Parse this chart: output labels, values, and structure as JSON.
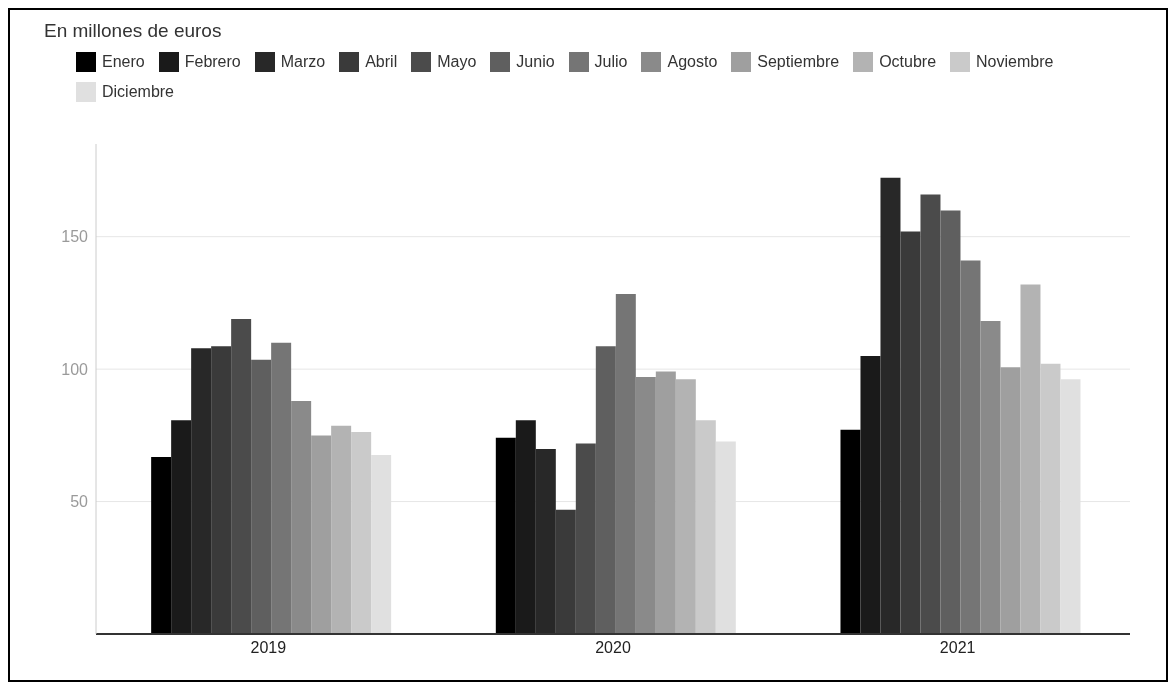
{
  "chart_data": {
    "type": "bar",
    "title": "En millones de euros",
    "categories": [
      "2019",
      "2020",
      "2021"
    ],
    "series": [
      {
        "name": "Enero",
        "color": "#000000",
        "values": [
          66.8,
          74.1,
          77.1
        ]
      },
      {
        "name": "Febrero",
        "color": "#1a1a1a",
        "values": [
          80.7,
          80.7,
          105
        ]
      },
      {
        "name": "Marzo",
        "color": "#282828",
        "values": [
          107.9,
          69.8,
          172.3
        ]
      },
      {
        "name": "Abril",
        "color": "#3a3a3a",
        "values": [
          108.6,
          46.9,
          152
        ]
      },
      {
        "name": "Mayo",
        "color": "#4b4b4b",
        "values": [
          118.9,
          71.9,
          165.9
        ]
      },
      {
        "name": "Junio",
        "color": "#5f5f5f",
        "values": [
          103.5,
          108.6,
          159.9
        ]
      },
      {
        "name": "Julio",
        "color": "#757575",
        "values": [
          110,
          128.4,
          141
        ]
      },
      {
        "name": "Agosto",
        "color": "#8a8a8a",
        "values": [
          88,
          97,
          118.2
        ]
      },
      {
        "name": "Septiembre",
        "color": "#9f9f9f",
        "values": [
          74.9,
          99.1,
          100.7
        ]
      },
      {
        "name": "Octubre",
        "color": "#b3b3b3",
        "values": [
          78.6,
          96.2,
          132
        ]
      },
      {
        "name": "Noviembre",
        "color": "#cacaca",
        "values": [
          76.3,
          80.7,
          102
        ]
      },
      {
        "name": "Diciembre",
        "color": "#e0e0e0",
        "values": [
          67.6,
          72.7,
          96.2
        ]
      }
    ],
    "ylim": [
      0,
      185
    ],
    "yticks": [
      50,
      100,
      150
    ],
    "grid": "y",
    "legend": "top left"
  }
}
